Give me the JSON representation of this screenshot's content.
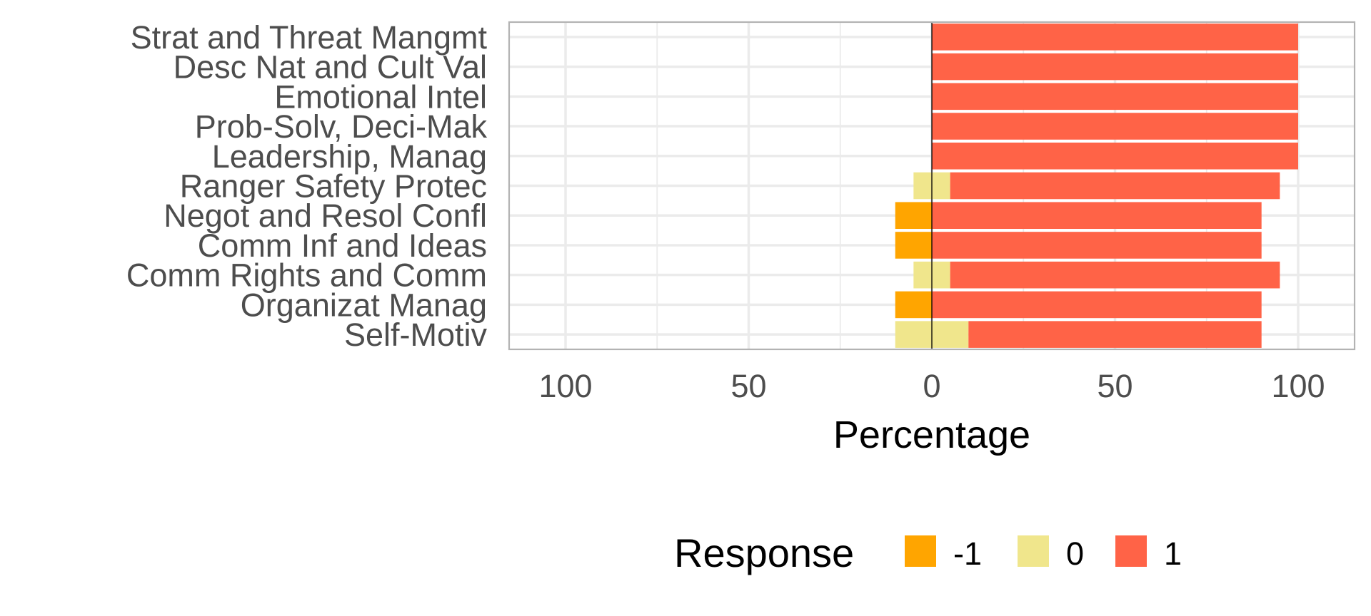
{
  "chart_data": {
    "type": "bar",
    "orientation": "horizontal",
    "stacking": "diverging",
    "categories": [
      "Strat and Threat Mangmt",
      "Desc Nat and Cult Val",
      "Emotional Intel",
      "Prob-Solv, Deci-Mak",
      "Leadership, Manag",
      "Ranger Safety Protec",
      "Negot and Resol Confl",
      "Comm Inf and Ideas",
      "Comm Rights and Comm",
      "Organizat Manag",
      "Self-Motiv"
    ],
    "series": [
      {
        "name": "-1",
        "color": "#FFA500",
        "values": [
          0,
          0,
          0,
          0,
          0,
          0,
          10,
          10,
          0,
          10,
          0
        ]
      },
      {
        "name": "0",
        "color": "#F0E68C",
        "values": [
          0,
          0,
          0,
          0,
          0,
          10,
          0,
          0,
          10,
          0,
          20
        ]
      },
      {
        "name": "1",
        "color": "#FF6347",
        "values": [
          100,
          100,
          100,
          100,
          100,
          90,
          90,
          90,
          90,
          90,
          80
        ]
      }
    ],
    "xlabel": "Percentage",
    "ylabel": "",
    "xlim": [
      -115,
      115
    ],
    "xticks": [
      -100,
      -50,
      0,
      50,
      100
    ],
    "xtick_labels": [
      "100",
      "50",
      "0",
      "50",
      "100"
    ],
    "grid": true,
    "legend": {
      "title": "Response",
      "position": "bottom",
      "entries": [
        "-1",
        "0",
        "1"
      ]
    }
  }
}
